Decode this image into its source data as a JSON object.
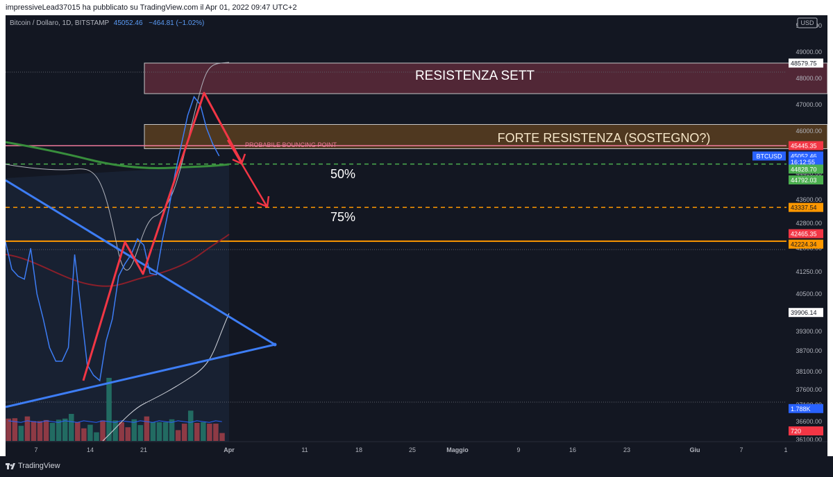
{
  "header": {
    "text": "impressiveLead37015 ha pubblicato su TradingView.com il Apr 01, 2022 09:47 UTC+2"
  },
  "legend": {
    "symbol": "Bitcoin / Dollaro, 1D, BITSTAMP",
    "price": "45052.46",
    "change": "−464.81 (−1.02%)"
  },
  "footer": {
    "brand": "TradingView"
  },
  "colors": {
    "background": "#131722",
    "blue": "#3d7df5",
    "red": "#f23645",
    "green": "#4caf50",
    "orange": "#ff9800"
  },
  "chart_data": {
    "type": "line",
    "currency": "USD",
    "y_axis_ticks": [
      "50000.00",
      "49000.00",
      "48000.00",
      "47000.00",
      "46000.00",
      "45000.00",
      "44400.00",
      "43600.00",
      "42800.00",
      "42000.00",
      "41250.00",
      "40500.00",
      "39300.00",
      "38700.00",
      "38100.00",
      "37600.00",
      "37100.00",
      "36600.00",
      "36100.00"
    ],
    "x_axis_ticks": [
      "7",
      "14",
      "21",
      "Apr",
      "11",
      "18",
      "25",
      "Maggio",
      "9",
      "16",
      "23",
      "Giu",
      "7",
      "1"
    ],
    "price_tags": [
      {
        "text": "48579.75",
        "bg": "#ffffff",
        "fg": "#131722",
        "price": 48579.75
      },
      {
        "text": "45445.35",
        "bg": "#f23645",
        "fg": "#ffffff",
        "price": 45445.35
      },
      {
        "text": "45052.46",
        "bg": "#2962ff",
        "fg": "#ffffff",
        "price": 45052.46
      },
      {
        "text": "16:12:55",
        "bg": "#2962ff",
        "fg": "#ffffff",
        "price": 44830
      },
      {
        "text": "44828.70",
        "bg": "#4caf50",
        "fg": "#ffffff",
        "price": 44560
      },
      {
        "text": "44792.03",
        "bg": "#4caf50",
        "fg": "#ffffff",
        "price": 44200
      },
      {
        "text": "43337.54",
        "bg": "#ff9800",
        "fg": "#131722",
        "price": 43337.54
      },
      {
        "text": "42465.35",
        "bg": "#f23645",
        "fg": "#ffffff",
        "price": 42465.35
      },
      {
        "text": "42224.34",
        "bg": "#ff9800",
        "fg": "#131722",
        "price": 42130
      },
      {
        "text": "39906.14",
        "bg": "#ffffff",
        "fg": "#131722",
        "price": 39906.14
      },
      {
        "text": "1.788K",
        "bg": "#2962ff",
        "fg": "#ffffff",
        "price": 36990
      },
      {
        "text": "720",
        "bg": "#f23645",
        "fg": "#ffffff",
        "price": 36340
      }
    ],
    "symbol_tag": "BTCUSD",
    "annotations": {
      "weekly_resistance": "RESISTENZA SETT",
      "strong_resistance": "FORTE RESISTENZA (SOSTEGNO?)",
      "bouncing_point": "PROBABILE BOUNCING POINT",
      "fib_50": "50%",
      "fib_75": "75%"
    },
    "zones": [
      {
        "name": "weekly_resistance",
        "top": 48579.75,
        "bottom": 47420
      },
      {
        "name": "strong_resistance",
        "top": 46250,
        "bottom": 45330
      }
    ],
    "levels": [
      {
        "name": "pink",
        "price": 45445.35
      },
      {
        "name": "fib50",
        "price": 44750,
        "dashed": true
      },
      {
        "name": "fib75",
        "price": 43337.54,
        "dashed": true
      },
      {
        "name": "orange",
        "price": 42224.34
      }
    ],
    "price_series": [
      [
        1,
        42200
      ],
      [
        2,
        41330
      ],
      [
        3,
        41100
      ],
      [
        4,
        41000
      ],
      [
        5,
        42000
      ],
      [
        6,
        40500
      ],
      [
        7,
        39700
      ],
      [
        8,
        38800
      ],
      [
        9,
        38400
      ],
      [
        10,
        38400
      ],
      [
        11,
        38800
      ],
      [
        12,
        41800
      ],
      [
        13,
        40000
      ],
      [
        14,
        38300
      ],
      [
        15,
        38000
      ],
      [
        16,
        37850
      ],
      [
        17,
        39000
      ],
      [
        18,
        39700
      ],
      [
        19,
        41100
      ],
      [
        20,
        41500
      ],
      [
        21,
        41800
      ],
      [
        22,
        42300
      ],
      [
        23,
        42100
      ],
      [
        24,
        41200
      ],
      [
        25,
        41150
      ],
      [
        26,
        42300
      ],
      [
        27,
        43300
      ],
      [
        28,
        44400
      ],
      [
        29,
        45500
      ],
      [
        30,
        46600
      ],
      [
        31,
        47300
      ],
      [
        32,
        47000
      ],
      [
        33,
        46100
      ],
      [
        34,
        45500
      ],
      [
        35,
        45052
      ]
    ],
    "volume_series": [
      {
        "v": 0.62,
        "up": false
      },
      {
        "v": 0.63,
        "up": false
      },
      {
        "v": 0.42,
        "up": true
      },
      {
        "v": 0.68,
        "up": false
      },
      {
        "v": 0.55,
        "up": false
      },
      {
        "v": 0.55,
        "up": false
      },
      {
        "v": 0.58,
        "up": false
      },
      {
        "v": 0.5,
        "up": true
      },
      {
        "v": 0.59,
        "up": true
      },
      {
        "v": 0.62,
        "up": true
      },
      {
        "v": 0.75,
        "up": true
      },
      {
        "v": 0.52,
        "up": false
      },
      {
        "v": 0.35,
        "up": false
      },
      {
        "v": 0.45,
        "up": true
      },
      {
        "v": 0.24,
        "up": true
      },
      {
        "v": 0.57,
        "up": false
      },
      {
        "v": 1.75,
        "up": true
      },
      {
        "v": 0.57,
        "up": true
      },
      {
        "v": 0.52,
        "up": false
      },
      {
        "v": 0.38,
        "up": false
      },
      {
        "v": 0.6,
        "up": true
      },
      {
        "v": 0.44,
        "up": true
      },
      {
        "v": 0.68,
        "up": false
      },
      {
        "v": 0.52,
        "up": true
      },
      {
        "v": 0.52,
        "up": true
      },
      {
        "v": 0.52,
        "up": true
      },
      {
        "v": 0.6,
        "up": true
      },
      {
        "v": 0.3,
        "up": false
      },
      {
        "v": 0.48,
        "up": false
      },
      {
        "v": 0.84,
        "up": true
      },
      {
        "v": 0.5,
        "up": false
      },
      {
        "v": 0.52,
        "up": true
      },
      {
        "v": 0.48,
        "up": false
      },
      {
        "v": 0.48,
        "up": false
      },
      {
        "v": 0.22,
        "up": false
      }
    ]
  }
}
